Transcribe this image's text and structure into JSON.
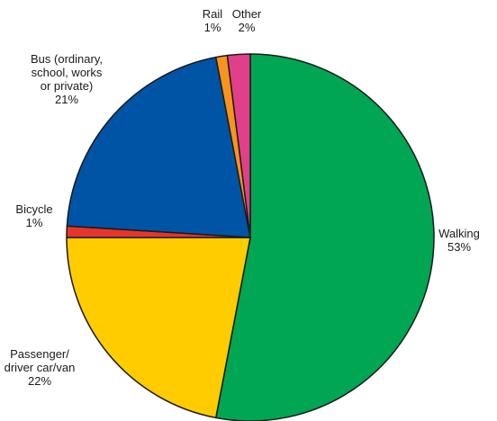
{
  "chart_data": {
    "type": "pie",
    "slices": [
      {
        "label_lines": [
          "Walking",
          "53%"
        ],
        "value": 53,
        "color": "#00a651"
      },
      {
        "label_lines": [
          "Passenger/",
          "driver car/van",
          "22%"
        ],
        "value": 22,
        "color": "#ffcc00"
      },
      {
        "label_lines": [
          "Bicycle",
          "1%"
        ],
        "value": 1,
        "color": "#e8352b"
      },
      {
        "label_lines": [
          "Bus (ordinary,",
          "school, works",
          "or private)",
          "21%"
        ],
        "value": 21,
        "color": "#0054a6"
      },
      {
        "label_lines": [
          "Rail",
          "1%"
        ],
        "value": 1,
        "color": "#f7941d"
      },
      {
        "label_lines": [
          "Other",
          "2%"
        ],
        "value": 2,
        "color": "#e0408a"
      }
    ]
  }
}
